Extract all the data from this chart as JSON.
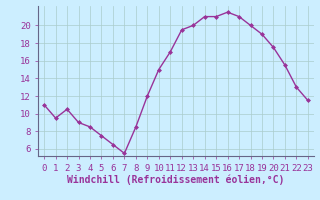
{
  "x": [
    0,
    1,
    2,
    3,
    4,
    5,
    6,
    7,
    8,
    9,
    10,
    11,
    12,
    13,
    14,
    15,
    16,
    17,
    18,
    19,
    20,
    21,
    22,
    23
  ],
  "y": [
    11,
    9.5,
    10.5,
    9,
    8.5,
    7.5,
    6.5,
    5.5,
    8.5,
    12,
    15,
    17,
    19.5,
    20,
    21,
    21,
    21.5,
    21,
    20,
    19,
    17.5,
    15.5,
    13,
    11.5
  ],
  "line_color": "#993399",
  "marker": "D",
  "marker_size": 2,
  "bg_color": "#cceeff",
  "grid_color": "#aacccc",
  "xlabel": "Windchill (Refroidissement éolien,°C)",
  "ylabel": "",
  "xlim": [
    -0.5,
    23.5
  ],
  "ylim": [
    5.2,
    22.2
  ],
  "yticks": [
    6,
    8,
    10,
    12,
    14,
    16,
    18,
    20
  ],
  "xticks": [
    0,
    1,
    2,
    3,
    4,
    5,
    6,
    7,
    8,
    9,
    10,
    11,
    12,
    13,
    14,
    15,
    16,
    17,
    18,
    19,
    20,
    21,
    22,
    23
  ],
  "label_fontsize": 7,
  "tick_fontsize": 6.5
}
